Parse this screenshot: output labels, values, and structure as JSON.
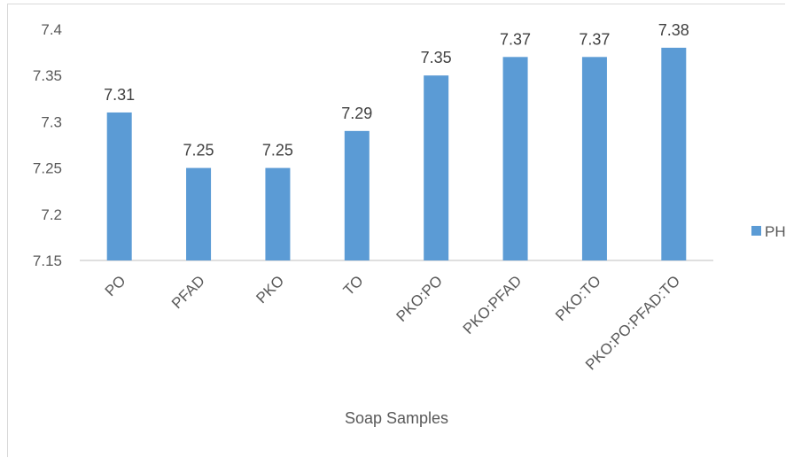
{
  "chart_data": {
    "type": "bar",
    "categories": [
      "PO",
      "PFAD",
      "PKO",
      "TO",
      "PKO:PO",
      "PKO:PFAD",
      "PKO:TO",
      "PKO:PO:PFAD:TO"
    ],
    "series": [
      {
        "name": "PH",
        "values": [
          7.31,
          7.25,
          7.25,
          7.29,
          7.35,
          7.37,
          7.37,
          7.38
        ]
      }
    ],
    "data_labels": [
      "7.31",
      "7.25",
      "7.25",
      "7.29",
      "7.35",
      "7.37",
      "7.37",
      "7.38"
    ],
    "y_ticks": [
      "7.15",
      "7.2",
      "7.25",
      "7.3",
      "7.35",
      "7.4"
    ],
    "ylim": [
      7.15,
      7.4
    ],
    "xlabel": "Soap Samples",
    "ylabel": "",
    "title": "",
    "grid": false,
    "legend": "right",
    "bar_color": "#5b9bd5"
  }
}
